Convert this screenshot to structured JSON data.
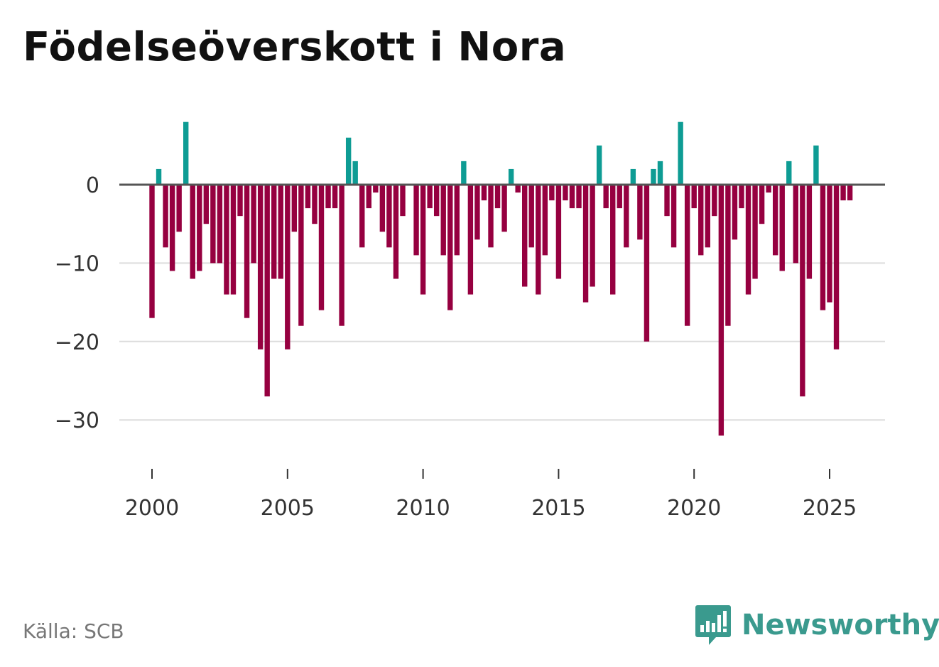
{
  "title": "Födelseöverskott i Nora",
  "source": "Källa: SCB",
  "brand": "Newsworthy",
  "chart_data": {
    "type": "bar",
    "title": "Födelseöverskott i Nora",
    "xlabel": "",
    "ylabel": "",
    "x_start": 2000,
    "x_step": 0.25,
    "xlim": [
      1999.75,
      2027.0
    ],
    "ylim": [
      -35,
      9
    ],
    "y_ticks": [
      0,
      -10,
      -20,
      -30
    ],
    "y_tick_labels": [
      "0",
      "−10",
      "−20",
      "−30"
    ],
    "x_ticks": [
      2000,
      2005,
      2010,
      2015,
      2020,
      2025
    ],
    "x_tick_labels": [
      "2000",
      "2005",
      "2010",
      "2015",
      "2020",
      "2025"
    ],
    "grid": true,
    "positive_color": "#0e9c94",
    "negative_color": "#960040",
    "zero_line_color": "#555555",
    "grid_color": "#dddddd",
    "values": [
      -17,
      2,
      -8,
      -11,
      -6,
      8,
      -12,
      -11,
      -5,
      -10,
      -10,
      -14,
      -14,
      -4,
      -17,
      -10,
      -21,
      -27,
      -12,
      -12,
      -21,
      -6,
      -18,
      -3,
      -5,
      -16,
      -3,
      -3,
      -18,
      6,
      3,
      -8,
      -3,
      -1,
      -6,
      -8,
      -12,
      -4,
      0,
      -9,
      -14,
      -3,
      -4,
      -9,
      -16,
      -9,
      3,
      -14,
      -7,
      -2,
      -8,
      -3,
      -6,
      2,
      -1,
      -13,
      -8,
      -14,
      -9,
      -2,
      -12,
      -2,
      -3,
      -3,
      -15,
      -13,
      5,
      -3,
      -14,
      -3,
      -8,
      2,
      -7,
      -20,
      2,
      3,
      -4,
      -8,
      8,
      -18,
      -3,
      -9,
      -8,
      -4,
      -32,
      -18,
      -7,
      -3,
      -14,
      -12,
      -5,
      -1,
      -9,
      -11,
      3,
      -10,
      -27,
      -12,
      5,
      -16,
      -15,
      -21,
      -2,
      -2
    ]
  }
}
